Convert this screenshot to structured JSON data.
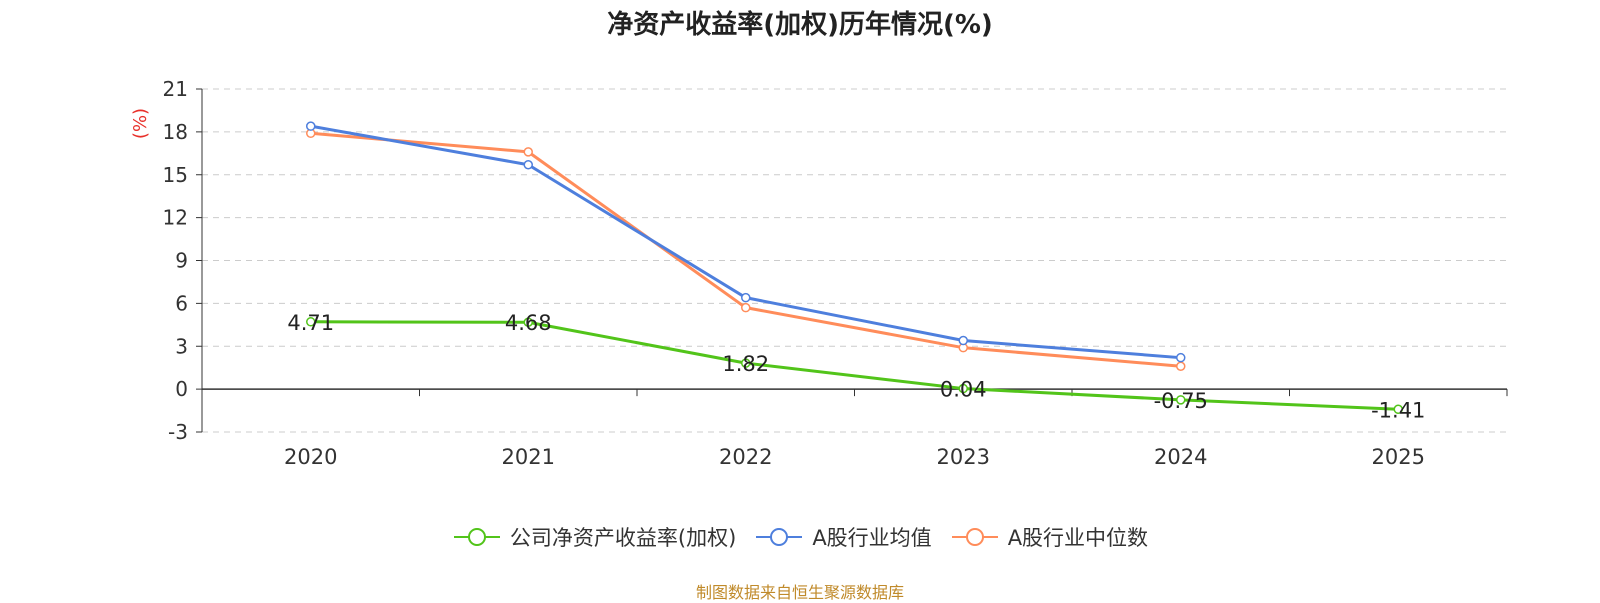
{
  "chart_data": {
    "type": "line",
    "title": "净资产收益率(加权)历年情况(%)",
    "ylabel": "(%)",
    "xlabel": "",
    "categories": [
      "2020",
      "2021",
      "2022",
      "2023",
      "2024",
      "2025"
    ],
    "ylim": [
      -3,
      21
    ],
    "yticks": [
      -3,
      0,
      3,
      6,
      9,
      12,
      15,
      18,
      21
    ],
    "grid": true,
    "legend_position": "bottom",
    "series": [
      {
        "name": "公司净资产收益率(加权)",
        "color": "#52c41a",
        "values": [
          4.71,
          4.68,
          1.82,
          0.04,
          -0.75,
          -1.41
        ],
        "data_labels": [
          "4.71",
          "4.68",
          "1.82",
          "0.04",
          "-0.75",
          "-1.41"
        ]
      },
      {
        "name": "A股行业均值",
        "color": "#4e7fdd",
        "values": [
          18.4,
          15.7,
          6.4,
          3.4,
          2.2,
          null
        ]
      },
      {
        "name": "A股行业中位数",
        "color": "#ff8c5a",
        "values": [
          17.9,
          16.6,
          5.7,
          2.9,
          1.6,
          null
        ]
      }
    ]
  },
  "source": "制图数据来自恒生聚源数据库"
}
